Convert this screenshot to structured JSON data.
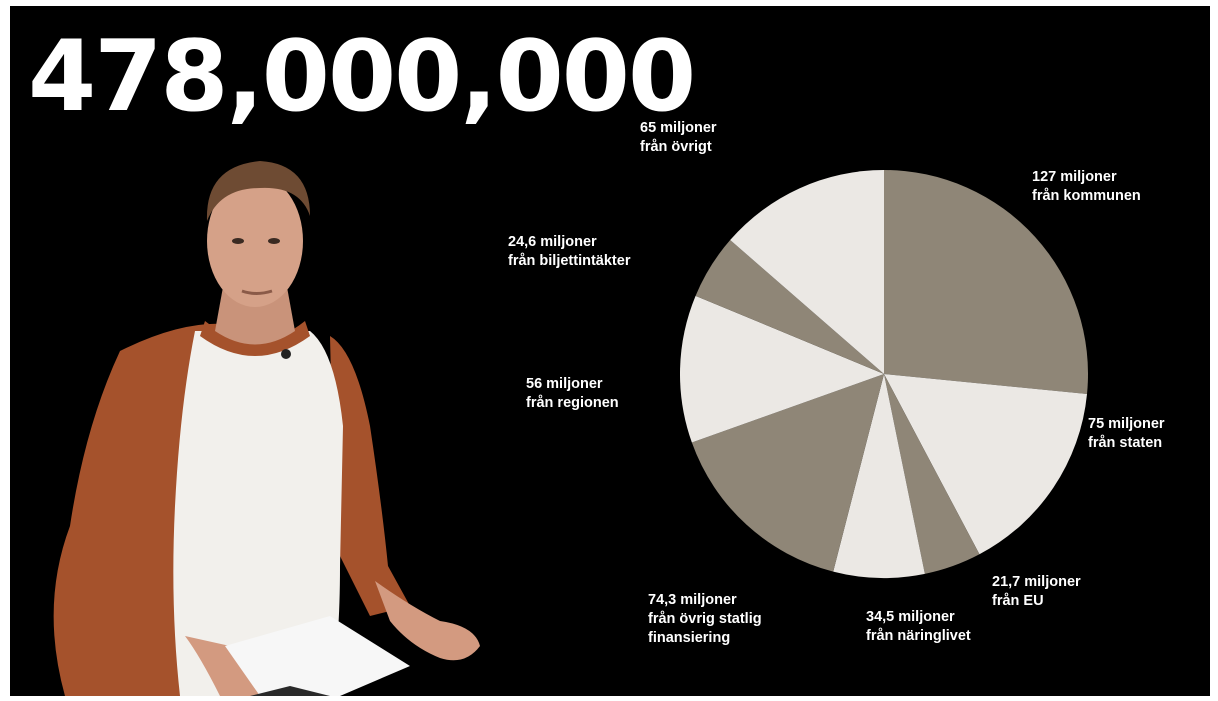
{
  "headline": "478,000,000",
  "colors": {
    "background": "#000000",
    "slice_dark": "#8f8677",
    "slice_light": "#ebe8e4",
    "text": "#ffffff"
  },
  "chart_data": {
    "type": "pie",
    "title": "",
    "slices": [
      {
        "value": 127,
        "label": "127 miljoner\nfrån kommunen",
        "color": "#8f8677"
      },
      {
        "value": 75,
        "label": "75 miljoner\nfrån staten",
        "color": "#ebe8e4"
      },
      {
        "value": 21.7,
        "label": "21,7 miljoner\nfrån EU",
        "color": "#8f8677"
      },
      {
        "value": 34.5,
        "label": "34,5 miljoner\nfrån näringlivet",
        "color": "#ebe8e4"
      },
      {
        "value": 74.3,
        "label": "74,3 miljoner\nfrån övrig statlig\nfinansiering",
        "color": "#8f8677"
      },
      {
        "value": 56,
        "label": "56 miljoner\nfrån regionen",
        "color": "#ebe8e4"
      },
      {
        "value": 24.6,
        "label": "24,6 miljoner\nfrån biljettintäkter",
        "color": "#8f8677"
      },
      {
        "value": 65,
        "label": "65 miljoner\nfrån övrigt",
        "color": "#ebe8e4"
      }
    ]
  }
}
